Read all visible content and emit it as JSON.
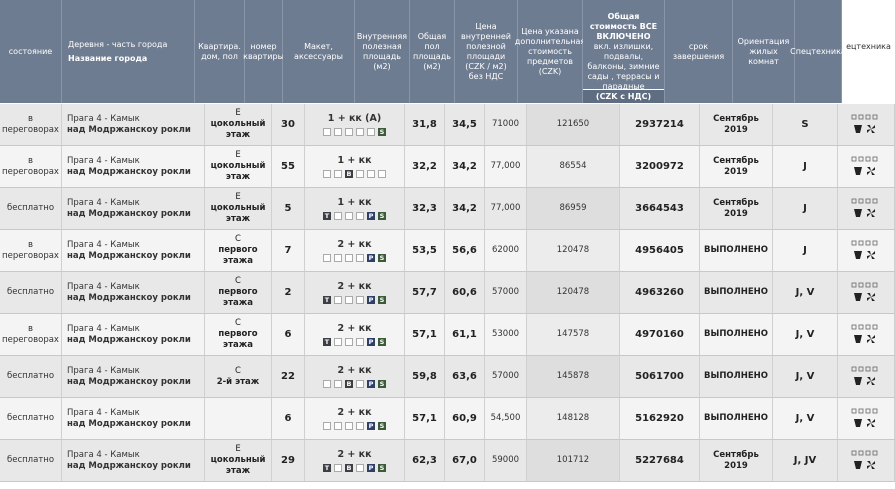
{
  "header": {
    "columns": [
      "состояние",
      {
        "title": "Деревня - часть города",
        "detail": "Название города"
      },
      "Квартира. дом, пол",
      "номер квартиры",
      "Макет, аксессуары",
      "Внутренняя полезная площадь (м2)",
      "Общая пол площадь (м2)",
      "Цена внутренней полезной площади (CZK / м2) без НДС",
      "Цена указана дополнительная стоимость предметов (CZK)",
      {
        "title": "Общая стоимость ВСЕ ВКЛЮЧЕНО",
        "detail": "вкл. излишки, подвалы, балконы, зимние сады , террасы и парадные комнаты",
        "unit": "(CZK с НДС)"
      },
      "срок завершения",
      "Ориентация жилых комнат",
      "Спецтехника",
      "ецтехника"
    ]
  },
  "rows": [
    {
      "status": "в переговорах",
      "district": "Прага 4 - Камык",
      "street": "над Модржанскоу рокли",
      "floor_code": "E",
      "floor_name": "цокольный этаж",
      "number": "30",
      "layout": "1 + кк (A)",
      "icons": [
        null,
        null,
        null,
        null,
        null,
        "S"
      ],
      "inner_area": "31,8",
      "total_area": "34,5",
      "price_m2": "71000",
      "extra_price": "121650",
      "total_price": "2937214",
      "completion": "Сентябрь 2019",
      "orientation": "S"
    },
    {
      "status": "в переговорах",
      "district": "Прага 4 - Камык",
      "street": "над Модржанскоу рокли",
      "floor_code": "E",
      "floor_name": "цокольный этаж",
      "number": "55",
      "layout": "1 + кк",
      "icons": [
        null,
        null,
        "B",
        null,
        null,
        null
      ],
      "inner_area": "32,2",
      "total_area": "34,2",
      "price_m2": "77,000",
      "extra_price": "86554",
      "total_price": "3200972",
      "completion": "Сентябрь 2019",
      "orientation": "J"
    },
    {
      "status": "бесплатно",
      "district": "Прага 4 - Камык",
      "street": "над Модржанскоу рокли",
      "floor_code": "E",
      "floor_name": "цокольный этаж",
      "number": "5",
      "layout": "1 + кк",
      "icons": [
        "T",
        null,
        null,
        null,
        "P",
        "S"
      ],
      "inner_area": "32,3",
      "total_area": "34,2",
      "price_m2": "77,000",
      "extra_price": "86959",
      "total_price": "3664543",
      "completion": "Сентябрь 2019",
      "orientation": "J"
    },
    {
      "status": "в переговорах",
      "district": "Прага 4 - Камык",
      "street": "над Модржанскоу рокли",
      "floor_code": "C",
      "floor_name": "первого этажа",
      "number": "7",
      "layout": "2 + кк",
      "icons": [
        null,
        null,
        null,
        null,
        "P",
        "S"
      ],
      "inner_area": "53,5",
      "total_area": "56,6",
      "price_m2": "62000",
      "extra_price": "120478",
      "total_price": "4956405",
      "completion": "ВЫПОЛНЕНО",
      "orientation": "J"
    },
    {
      "status": "бесплатно",
      "district": "Прага 4 - Камык",
      "street": "над Модржанскоу рокли",
      "floor_code": "C",
      "floor_name": "первого этажа",
      "number": "2",
      "layout": "2 + кк",
      "icons": [
        "T",
        null,
        null,
        null,
        "P",
        "S"
      ],
      "inner_area": "57,7",
      "total_area": "60,6",
      "price_m2": "57000",
      "extra_price": "120478",
      "total_price": "4963260",
      "completion": "ВЫПОЛНЕНО",
      "orientation": "J, V"
    },
    {
      "status": "в переговорах",
      "district": "Прага 4 - Камык",
      "street": "над Модржанскоу рокли",
      "floor_code": "C",
      "floor_name": "первого этажа",
      "number": "6",
      "layout": "2 + кк",
      "icons": [
        "T",
        null,
        null,
        null,
        "P",
        "S"
      ],
      "inner_area": "57,1",
      "total_area": "61,1",
      "price_m2": "53000",
      "extra_price": "147578",
      "total_price": "4970160",
      "completion": "ВЫПОЛНЕНО",
      "orientation": "J, V"
    },
    {
      "status": "бесплатно",
      "district": "Прага 4 - Камык",
      "street": "над Модржанскоу рокли",
      "floor_code": "C",
      "floor_name": "2-й этаж",
      "number": "22",
      "layout": "2 + кк",
      "icons": [
        null,
        null,
        "B",
        null,
        "P",
        "S"
      ],
      "inner_area": "59,8",
      "total_area": "63,6",
      "price_m2": "57000",
      "extra_price": "145878",
      "total_price": "5061700",
      "completion": "ВЫПОЛНЕНО",
      "orientation": "J, V"
    },
    {
      "status": "бесплатно",
      "district": "Прага 4 - Камык",
      "street": "над Модржанскоу рокли",
      "floor_code": null,
      "floor_name": null,
      "number": "6",
      "layout": "2 + кк",
      "icons": [
        null,
        null,
        null,
        null,
        "P",
        "S"
      ],
      "inner_area": "57,1",
      "total_area": "60,9",
      "price_m2": "54,500",
      "extra_price": "148128",
      "total_price": "5162920",
      "completion": "ВЫПОЛНЕНО",
      "orientation": "J, V"
    },
    {
      "status": "бесплатно",
      "district": "Прага 4 - Камык",
      "street": "над Модржанскоу рокли",
      "floor_code": "E",
      "floor_name": "цокольный этаж",
      "number": "29",
      "layout": "2 + кк",
      "icons": [
        "T",
        null,
        "B",
        null,
        "P",
        "S"
      ],
      "inner_area": "62,3",
      "total_area": "67,0",
      "price_m2": "59000",
      "extra_price": "101712",
      "total_price": "5227684",
      "completion": "Сентябрь 2019",
      "orientation": "J, JV"
    }
  ]
}
